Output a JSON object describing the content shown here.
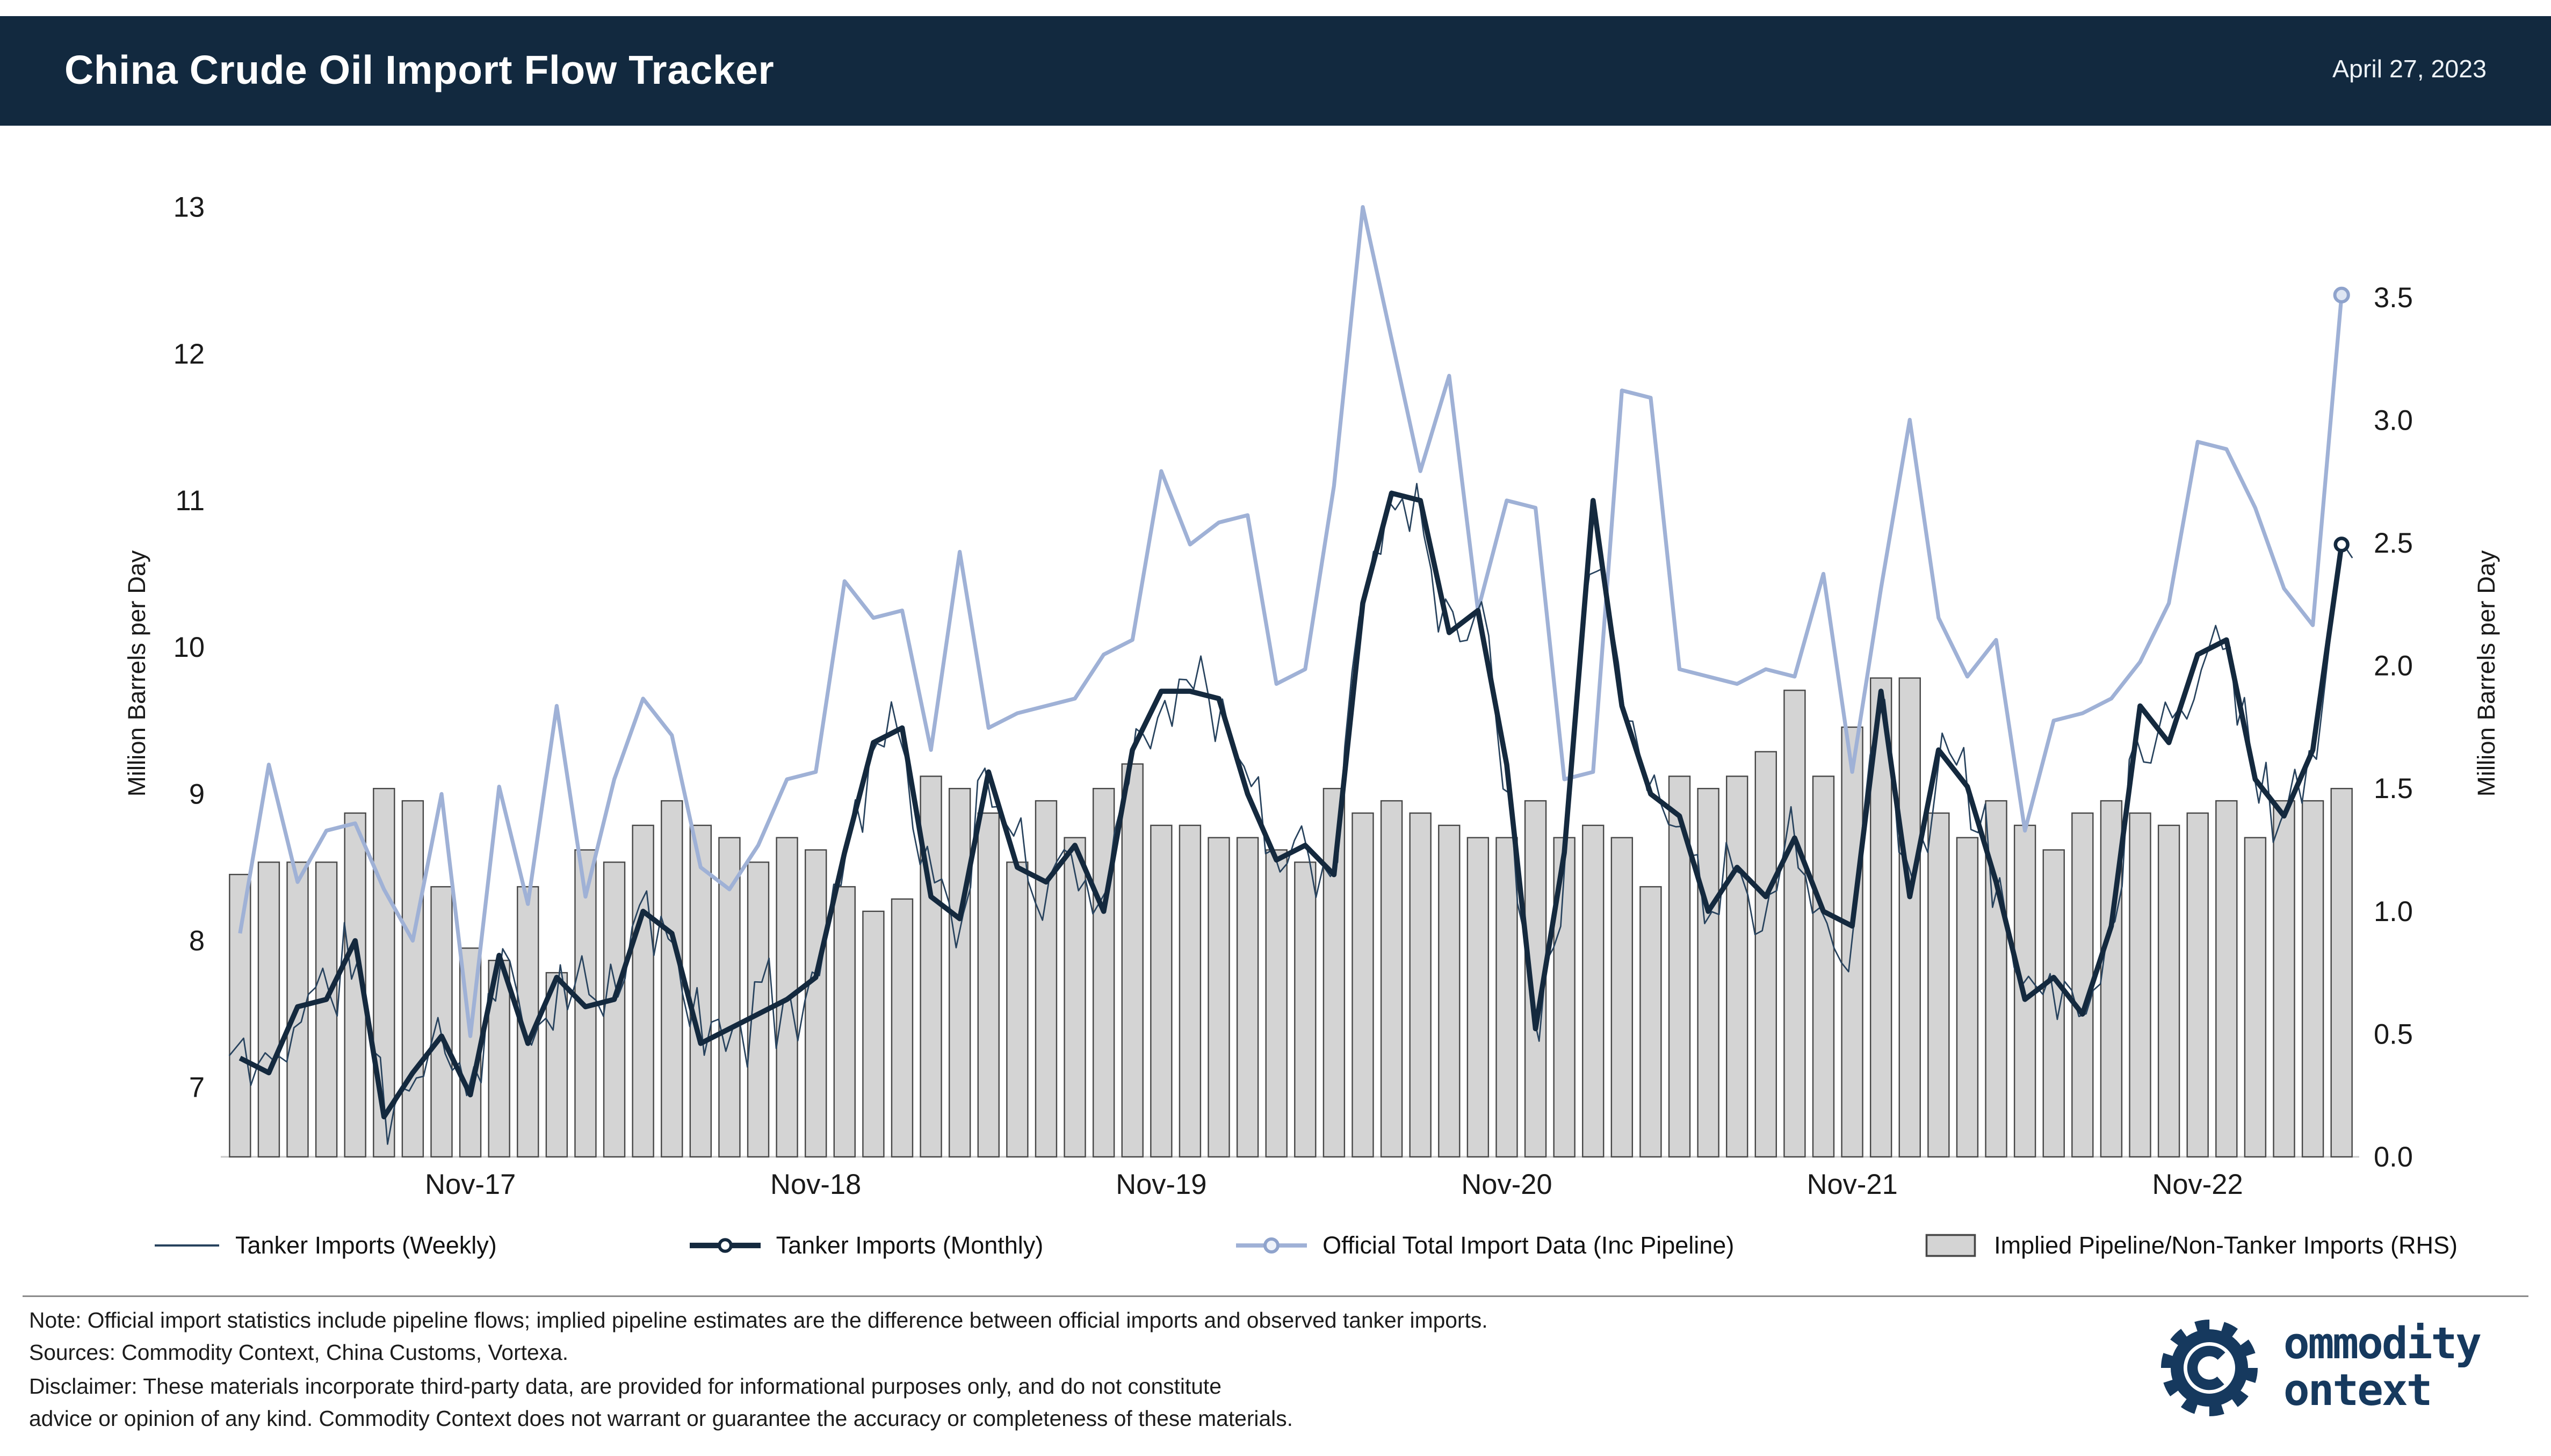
{
  "header": {
    "title": "China Crude Oil Import Flow Tracker",
    "date": "April 27, 2023"
  },
  "chart_data": {
    "type": "bar",
    "subtype": "combo-line-bar",
    "title": "China Crude Oil Import Flow Tracker",
    "left_axis": {
      "label": "Million Barrels per Day",
      "ticks": [
        7,
        8,
        9,
        10,
        11,
        12,
        13
      ],
      "range": [
        6.527,
        13.17
      ]
    },
    "right_axis": {
      "label": "Million Barrels per Day",
      "ticks": [
        "0.0",
        "0.5",
        "1.0",
        "1.5",
        "2.0",
        "2.5",
        "3.0",
        "3.5"
      ],
      "range": [
        0,
        3.97
      ]
    },
    "x_tick_labels": [
      "Nov-17",
      "Nov-18",
      "Nov-19",
      "Nov-20",
      "Nov-21",
      "Nov-22"
    ],
    "grid": false,
    "legend_position": "bottom",
    "months": [
      "Mar-17",
      "Apr-17",
      "May-17",
      "Jun-17",
      "Jul-17",
      "Aug-17",
      "Sep-17",
      "Oct-17",
      "Nov-17",
      "Dec-17",
      "Jan-18",
      "Feb-18",
      "Mar-18",
      "Apr-18",
      "May-18",
      "Jun-18",
      "Jul-18",
      "Aug-18",
      "Sep-18",
      "Oct-18",
      "Nov-18",
      "Dec-18",
      "Jan-19",
      "Feb-19",
      "Mar-19",
      "Apr-19",
      "May-19",
      "Jun-19",
      "Jul-19",
      "Aug-19",
      "Sep-19",
      "Oct-19",
      "Nov-19",
      "Dec-19",
      "Jan-20",
      "Feb-20",
      "Mar-20",
      "Apr-20",
      "May-20",
      "Jun-20",
      "Jul-20",
      "Aug-20",
      "Sep-20",
      "Oct-20",
      "Nov-20",
      "Dec-20",
      "Jan-21",
      "Feb-21",
      "Mar-21",
      "Apr-21",
      "May-21",
      "Jun-21",
      "Jul-21",
      "Aug-21",
      "Sep-21",
      "Oct-21",
      "Nov-21",
      "Dec-21",
      "Jan-22",
      "Feb-22",
      "Mar-22",
      "Apr-22",
      "May-22",
      "Jun-22",
      "Jul-22",
      "Aug-22",
      "Sep-22",
      "Oct-22",
      "Nov-22",
      "Dec-22",
      "Jan-23",
      "Feb-23",
      "Mar-23",
      "Apr-23"
    ],
    "series": [
      {
        "name": "Tanker Imports (Weekly)",
        "type": "line",
        "axis": "left",
        "color": "#27425d",
        "width": 0.9,
        "derived": {
          "from_series": 1,
          "points_per_month": 4,
          "noise_amplitude": 0.38,
          "seed": 11
        }
      },
      {
        "name": "Tanker Imports (Monthly)",
        "type": "line",
        "axis": "left",
        "color": "#14293e",
        "width": 3.2,
        "end_marker": true,
        "values": [
          7.2,
          7.1,
          7.55,
          7.6,
          8.0,
          6.8,
          7.1,
          7.35,
          6.95,
          7.9,
          7.3,
          7.75,
          7.55,
          7.6,
          8.2,
          8.05,
          7.3,
          7.4,
          7.5,
          7.6,
          7.75,
          8.6,
          9.35,
          9.45,
          8.3,
          8.15,
          9.15,
          8.5,
          8.4,
          8.65,
          8.2,
          9.3,
          9.7,
          9.7,
          9.65,
          9.0,
          8.55,
          8.65,
          8.45,
          10.3,
          11.05,
          11.0,
          10.1,
          10.25,
          9.2,
          7.4,
          8.6,
          11.0,
          9.6,
          9.0,
          8.85,
          8.2,
          8.5,
          8.3,
          8.7,
          8.2,
          8.1,
          9.7,
          8.3,
          9.3,
          9.05,
          8.4,
          7.6,
          7.75,
          7.5,
          8.1,
          9.6,
          9.35,
          9.95,
          10.05,
          9.1,
          8.85,
          9.3,
          10.7
        ]
      },
      {
        "name": "Official Total Import Data (Inc Pipeline)",
        "type": "line",
        "axis": "left",
        "color": "#9fb1d6",
        "width": 2.4,
        "end_marker": true,
        "values": [
          8.05,
          9.2,
          8.4,
          8.75,
          8.8,
          8.35,
          8.0,
          9.0,
          7.35,
          9.05,
          8.25,
          9.6,
          8.3,
          9.1,
          9.65,
          9.4,
          8.5,
          8.35,
          8.65,
          9.1,
          9.15,
          10.45,
          10.2,
          10.25,
          9.3,
          10.65,
          9.45,
          9.55,
          9.6,
          9.65,
          9.95,
          10.05,
          11.2,
          10.7,
          10.85,
          10.9,
          9.75,
          9.85,
          11.1,
          13.0,
          12.1,
          11.2,
          11.85,
          10.25,
          11.0,
          10.95,
          9.1,
          9.15,
          11.75,
          11.7,
          9.85,
          9.8,
          9.75,
          9.85,
          9.8,
          10.5,
          9.15,
          10.4,
          11.55,
          10.2,
          9.8,
          10.05,
          8.75,
          9.5,
          9.55,
          9.65,
          9.9,
          10.3,
          11.4,
          11.35,
          10.95,
          10.4,
          10.15,
          12.4
        ]
      },
      {
        "name": "Implied Pipeline/Non-Tanker Imports (RHS)",
        "type": "bar",
        "axis": "right",
        "color": "#d4d4d4",
        "border": "#474747",
        "values": [
          1.15,
          1.2,
          1.2,
          1.2,
          1.4,
          1.5,
          1.45,
          1.1,
          0.85,
          0.8,
          1.1,
          0.75,
          1.25,
          1.2,
          1.35,
          1.45,
          1.35,
          1.3,
          1.2,
          1.3,
          1.25,
          1.1,
          1.0,
          1.05,
          1.55,
          1.5,
          1.4,
          1.2,
          1.45,
          1.3,
          1.5,
          1.6,
          1.35,
          1.35,
          1.3,
          1.3,
          1.25,
          1.2,
          1.5,
          1.4,
          1.45,
          1.4,
          1.35,
          1.3,
          1.3,
          1.45,
          1.3,
          1.35,
          1.3,
          1.1,
          1.55,
          1.5,
          1.55,
          1.65,
          1.9,
          1.55,
          1.75,
          1.95,
          1.95,
          1.4,
          1.3,
          1.45,
          1.35,
          1.25,
          1.4,
          1.45,
          1.4,
          1.35,
          1.4,
          1.45,
          1.3,
          1.45,
          1.45,
          1.5
        ]
      }
    ]
  },
  "footer": {
    "note": "Note: Official import statistics include pipeline flows; implied pipeline estimates are the difference between official imports and observed tanker imports.",
    "sources": "Sources: Commodity Context, China Customs, Vortexa.",
    "disclaimer_line1": "Disclaimer: These materials incorporate third-party data, are provided for informational purposes only, and do not constitute",
    "disclaimer_line2": "advice or opinion of any kind. Commodity Context does not warrant or guarantee the accuracy or completeness of these materials."
  },
  "logo": {
    "brand_line1": "ommodity",
    "brand_line2": "ontext"
  }
}
